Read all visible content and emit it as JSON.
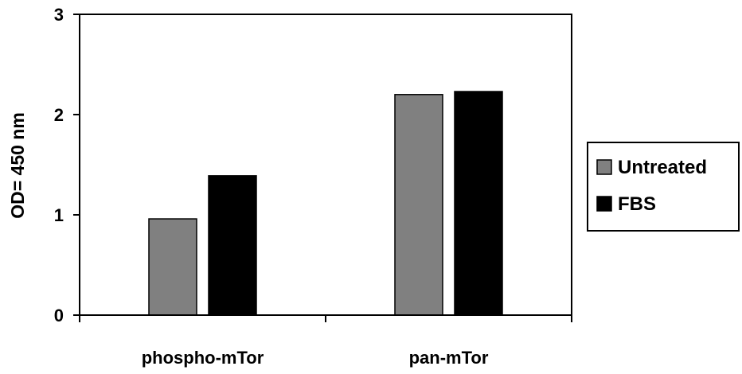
{
  "chart_data": {
    "type": "bar",
    "categories": [
      "phospho-mTor",
      "pan-mTor"
    ],
    "series": [
      {
        "name": "Untreated",
        "values": [
          0.96,
          2.2
        ],
        "color": "#808080"
      },
      {
        "name": "FBS",
        "values": [
          1.39,
          2.23
        ],
        "color": "#000000"
      }
    ],
    "title": "",
    "xlabel": "",
    "ylabel": "OD= 450 nm",
    "ylim": [
      0,
      3
    ],
    "yticks": [
      "0",
      "1",
      "2",
      "3"
    ],
    "grid": false,
    "legend_position": "right"
  }
}
